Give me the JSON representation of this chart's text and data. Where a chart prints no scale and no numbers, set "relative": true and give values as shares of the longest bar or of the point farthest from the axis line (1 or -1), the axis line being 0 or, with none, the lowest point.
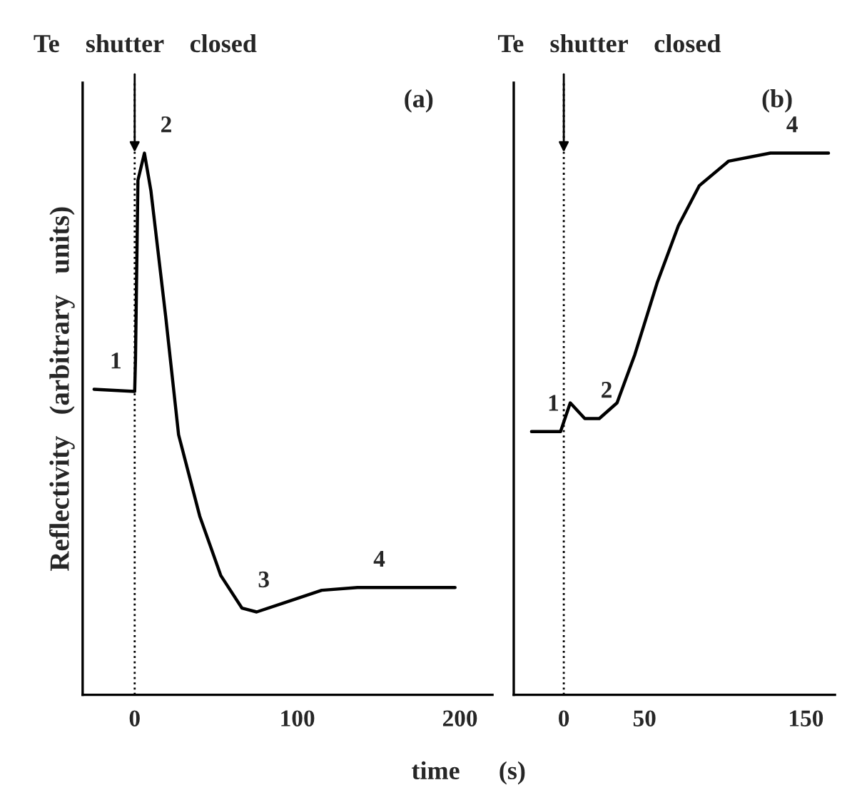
{
  "chart_data": [
    {
      "type": "line",
      "title": "Te    shutter    closed",
      "ylabel": "Reflectivity   (arbitrary   units)",
      "xlabel": "time      (s)",
      "relative": true,
      "xlim": [
        -32,
        220
      ],
      "xticks": [
        0,
        100,
        200
      ],
      "grid": false,
      "legend": false,
      "color": "#000000",
      "x": [
        -25,
        0,
        0.5,
        2,
        6,
        10,
        19,
        27,
        40,
        53,
        66,
        75,
        93,
        115,
        137,
        197
      ],
      "values": [
        0.564,
        0.56,
        0.62,
        0.95,
        1,
        0.93,
        0.7,
        0.48,
        0.33,
        0.22,
        0.16,
        0.153,
        0.171,
        0.193,
        0.198,
        0.198
      ],
      "ref_lines": [
        {
          "axis": "x",
          "value": 0,
          "line_style": "dotted",
          "color": "#000000"
        }
      ],
      "annotations": [
        "(a)",
        {
          "text": "1",
          "x": -25,
          "y": 0.564
        },
        {
          "text": "2",
          "x": 6,
          "y": 1
        },
        {
          "text": "3",
          "x": 66,
          "y": 0.16
        },
        {
          "text": "4",
          "x": 137,
          "y": 0.198
        }
      ]
    },
    {
      "type": "line",
      "title": "Te    shutter    closed",
      "relative": true,
      "xlim": [
        -31,
        168
      ],
      "xticks": [
        0,
        50,
        150
      ],
      "grid": false,
      "legend": false,
      "color": "#000000",
      "x": [
        -20,
        -2,
        4,
        13,
        22,
        33,
        44,
        58,
        71,
        84,
        102,
        128,
        164
      ],
      "values": [
        0.486,
        0.486,
        0.539,
        0.51,
        0.51,
        0.539,
        0.628,
        0.762,
        0.866,
        0.94,
        0.985,
        1,
        1
      ],
      "ref_lines": [
        {
          "axis": "x",
          "value": 0,
          "line_style": "dotted",
          "color": "#000000"
        }
      ],
      "annotations": [
        "(b)",
        {
          "text": "1",
          "x": -20,
          "y": 0.486
        },
        {
          "text": "2",
          "x": 13,
          "y": 0.51
        },
        {
          "text": "4",
          "x": 128,
          "y": 1
        }
      ]
    }
  ]
}
